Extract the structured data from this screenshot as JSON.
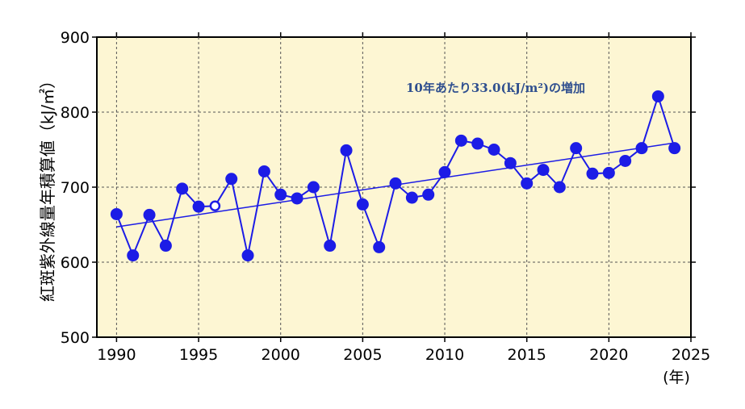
{
  "chart_data": {
    "type": "line",
    "ylabel": "紅斑紫外線量年積算値（kJ/㎡）",
    "xunit": "(年)",
    "xlim": [
      1988.8,
      2025
    ],
    "ylim": [
      500,
      900
    ],
    "xticks": [
      1990,
      1995,
      2000,
      2005,
      2010,
      2015,
      2020,
      2025
    ],
    "yticks": [
      500,
      600,
      700,
      800,
      900
    ],
    "grid": true,
    "annotation": "10年あたり33.0(kJ/m²)の増加",
    "series": [
      {
        "x": [
          1990,
          1991,
          1992,
          1993,
          1994,
          1995,
          1996,
          1997,
          1998,
          1999,
          2000,
          2001,
          2002,
          2003,
          2004,
          2005,
          2006,
          2007,
          2008,
          2009,
          2010,
          2011,
          2012,
          2013,
          2014,
          2015,
          2016,
          2017,
          2018,
          2019,
          2020,
          2021,
          2022,
          2023,
          2024
        ],
        "values": [
          664,
          609,
          663,
          622,
          698,
          674,
          675,
          711,
          609,
          721,
          690,
          685,
          700,
          622,
          749,
          677,
          620,
          705,
          686,
          690,
          720,
          762,
          758,
          750,
          732,
          705,
          723,
          700,
          752,
          718,
          719,
          735,
          752,
          821,
          752
        ],
        "open_markers": [
          1996
        ],
        "color": "#1c1ce6"
      }
    ],
    "trend": {
      "x": [
        1990,
        2024
      ],
      "values": [
        647,
        759
      ],
      "color": "#1c1ce6"
    },
    "colors": {
      "plot_bg": "#fdf6d3",
      "axis": "#000000",
      "annotation": "#2f4f8f"
    }
  }
}
